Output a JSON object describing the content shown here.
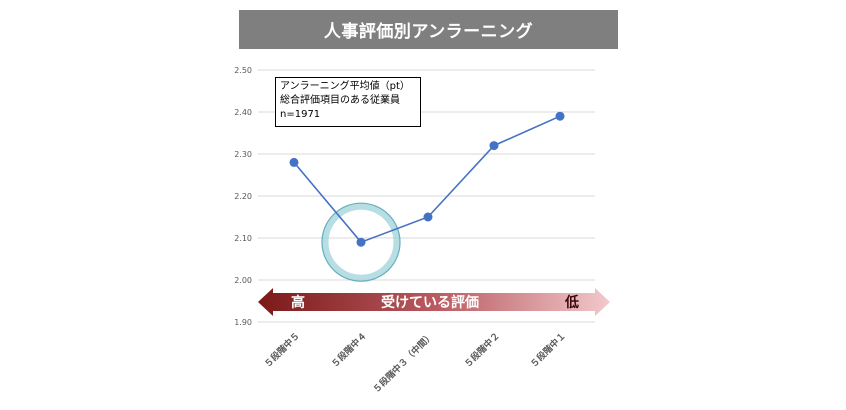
{
  "chart_data": {
    "type": "line",
    "title": "人事評価別アンラーニング",
    "annotation": [
      "アンラーニング平均値（pt）",
      "総合評価項目のある従業員",
      "n=1971"
    ],
    "categories": [
      "５段階中５",
      "５段階中４",
      "５段階中３（中間）",
      "５段階中２",
      "５段階中１"
    ],
    "series": [
      {
        "values": [
          2.28,
          2.09,
          2.15,
          2.32,
          2.39
        ]
      }
    ],
    "ylim": [
      1.9,
      2.5
    ],
    "yticks": [
      "1.90",
      "2.00",
      "2.10",
      "2.20",
      "2.30",
      "2.40",
      "2.50"
    ],
    "grid": true,
    "highlight_category": "５段階中４",
    "evaluation_arrow": {
      "left": "高",
      "center": "受けている評価",
      "right": "低"
    },
    "colors": {
      "line": "#4472c4",
      "title_bg": "#7f7f7f",
      "highlight": "#9fd3da",
      "arrow_dark": "#7b1818",
      "arrow_light": "#f2c9cc",
      "grid": "#d9d9d9"
    }
  }
}
